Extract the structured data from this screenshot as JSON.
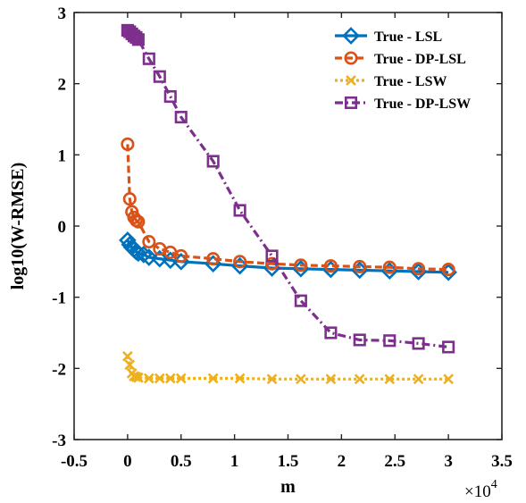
{
  "chart_data": {
    "type": "line",
    "title": "",
    "xlabel": "m",
    "ylabel": "log10(W-RMSE)",
    "x_multiplier_label": "×10",
    "x_multiplier_exponent": "4",
    "xlim": [
      -0.5,
      3.5
    ],
    "ylim": [
      -3,
      3
    ],
    "x_ticks": [
      -0.5,
      0,
      0.5,
      1,
      1.5,
      2,
      2.5,
      3,
      3.5
    ],
    "x_tick_labels": [
      "-0.5",
      "0",
      "0.5",
      "1",
      "1.5",
      "2",
      "2.5",
      "3",
      "3.5"
    ],
    "y_ticks": [
      -3,
      -2,
      -1,
      0,
      1,
      2,
      3
    ],
    "y_tick_labels": [
      "-3",
      "-2",
      "-1",
      "0",
      "1",
      "2",
      "3"
    ],
    "grid": false,
    "legend_position": "top-right",
    "series": [
      {
        "name": "True - LSL",
        "color": "#0072BD",
        "marker": "diamond",
        "line_style": "solid",
        "x": [
          0,
          0.02,
          0.04,
          0.06,
          0.08,
          0.1,
          0.15,
          0.2,
          0.3,
          0.4,
          0.5,
          0.8,
          1.05,
          1.35,
          1.62,
          1.9,
          2.17,
          2.45,
          2.72,
          3.0
        ],
        "y": [
          -0.2,
          -0.26,
          -0.3,
          -0.33,
          -0.36,
          -0.38,
          -0.4,
          -0.44,
          -0.46,
          -0.48,
          -0.5,
          -0.53,
          -0.56,
          -0.59,
          -0.6,
          -0.61,
          -0.62,
          -0.63,
          -0.64,
          -0.65
        ]
      },
      {
        "name": "True - DP-LSL",
        "color": "#D95319",
        "marker": "circle",
        "line_style": "dashed",
        "x": [
          0,
          0.02,
          0.04,
          0.06,
          0.08,
          0.1,
          0.2,
          0.3,
          0.4,
          0.5,
          0.8,
          1.05,
          1.35,
          1.62,
          1.9,
          2.17,
          2.45,
          2.72,
          3.0
        ],
        "y": [
          1.15,
          0.38,
          0.2,
          0.12,
          0.08,
          0.06,
          -0.22,
          -0.32,
          -0.37,
          -0.42,
          -0.46,
          -0.5,
          -0.53,
          -0.55,
          -0.56,
          -0.57,
          -0.58,
          -0.6,
          -0.61
        ]
      },
      {
        "name": "True - LSW",
        "color": "#EDB120",
        "marker": "x",
        "line_style": "dotted",
        "x": [
          0,
          0.02,
          0.04,
          0.06,
          0.08,
          0.1,
          0.2,
          0.3,
          0.4,
          0.5,
          0.8,
          1.05,
          1.35,
          1.62,
          1.9,
          2.17,
          2.45,
          2.72,
          3.0
        ],
        "y": [
          -1.83,
          -1.95,
          -2.07,
          -2.11,
          -2.12,
          -2.13,
          -2.14,
          -2.14,
          -2.14,
          -2.14,
          -2.14,
          -2.14,
          -2.15,
          -2.15,
          -2.15,
          -2.15,
          -2.15,
          -2.15,
          -2.15
        ]
      },
      {
        "name": "True - DP-LSW",
        "color": "#7E2F8E",
        "marker": "square",
        "line_style": "dash-dot",
        "x": [
          0,
          0.02,
          0.04,
          0.06,
          0.08,
          0.1,
          0.2,
          0.3,
          0.4,
          0.5,
          0.8,
          1.05,
          1.35,
          1.62,
          1.9,
          2.17,
          2.45,
          2.72,
          3.0
        ],
        "y": [
          2.75,
          2.73,
          2.7,
          2.67,
          2.65,
          2.62,
          2.35,
          2.1,
          1.82,
          1.53,
          0.91,
          0.22,
          -0.42,
          -1.05,
          -1.5,
          -1.6,
          -1.61,
          -1.65,
          -1.7
        ]
      }
    ]
  }
}
